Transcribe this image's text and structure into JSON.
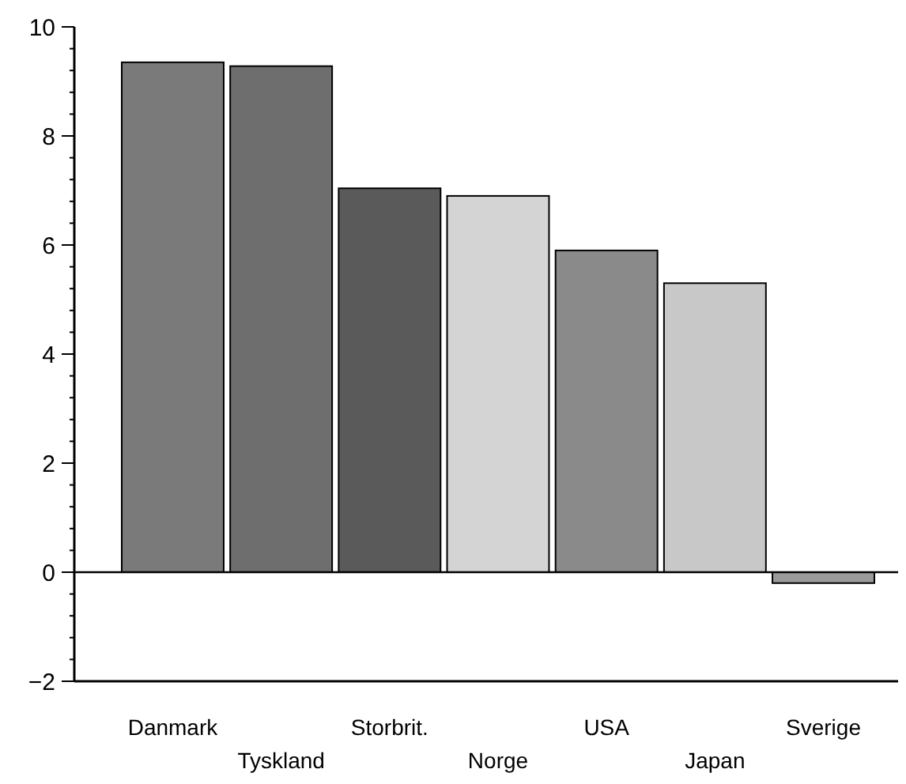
{
  "chart_data": {
    "type": "bar",
    "categories": [
      "Danmark",
      "Tyskland",
      "Storbrit.",
      "Norge",
      "USA",
      "Japan",
      "Sverige"
    ],
    "values": [
      9.35,
      9.28,
      7.04,
      6.9,
      5.9,
      5.3,
      -0.2
    ],
    "colors": [
      "#7a7a7a",
      "#6e6e6e",
      "#5a5a5a",
      "#d4d4d4",
      "#8a8a8a",
      "#c8c8c8",
      "#9a9a9a"
    ],
    "ylim": [
      -2,
      10
    ],
    "yticks": [
      -2,
      {
        "value": -1.6,
        "label": null
      },
      {
        "value": -1.2,
        "label": null
      },
      {
        "value": -0.8,
        "label": null
      },
      {
        "value": -0.4,
        "label": null
      },
      0,
      {
        "value": 0.4,
        "label": null
      },
      {
        "value": 0.8,
        "label": null
      },
      {
        "value": 1.2,
        "label": null
      },
      {
        "value": 1.6,
        "label": null
      },
      2,
      {
        "value": 2.4,
        "label": null
      },
      {
        "value": 2.8,
        "label": null
      },
      {
        "value": 3.2,
        "label": null
      },
      {
        "value": 3.6,
        "label": null
      },
      4,
      {
        "value": 4.4,
        "label": null
      },
      {
        "value": 4.8,
        "label": null
      },
      {
        "value": 5.2,
        "label": null
      },
      {
        "value": 5.6,
        "label": null
      },
      6,
      {
        "value": 6.4,
        "label": null
      },
      {
        "value": 6.8,
        "label": null
      },
      {
        "value": 7.2,
        "label": null
      },
      {
        "value": 7.6,
        "label": null
      },
      8,
      {
        "value": 8.4,
        "label": null
      },
      {
        "value": 8.8,
        "label": null
      },
      {
        "value": 9.2,
        "label": null
      },
      {
        "value": 9.6,
        "label": null
      },
      10
    ],
    "ref_lines": [
      {
        "axis": "y",
        "value": 0,
        "color": "#000000"
      }
    ]
  }
}
